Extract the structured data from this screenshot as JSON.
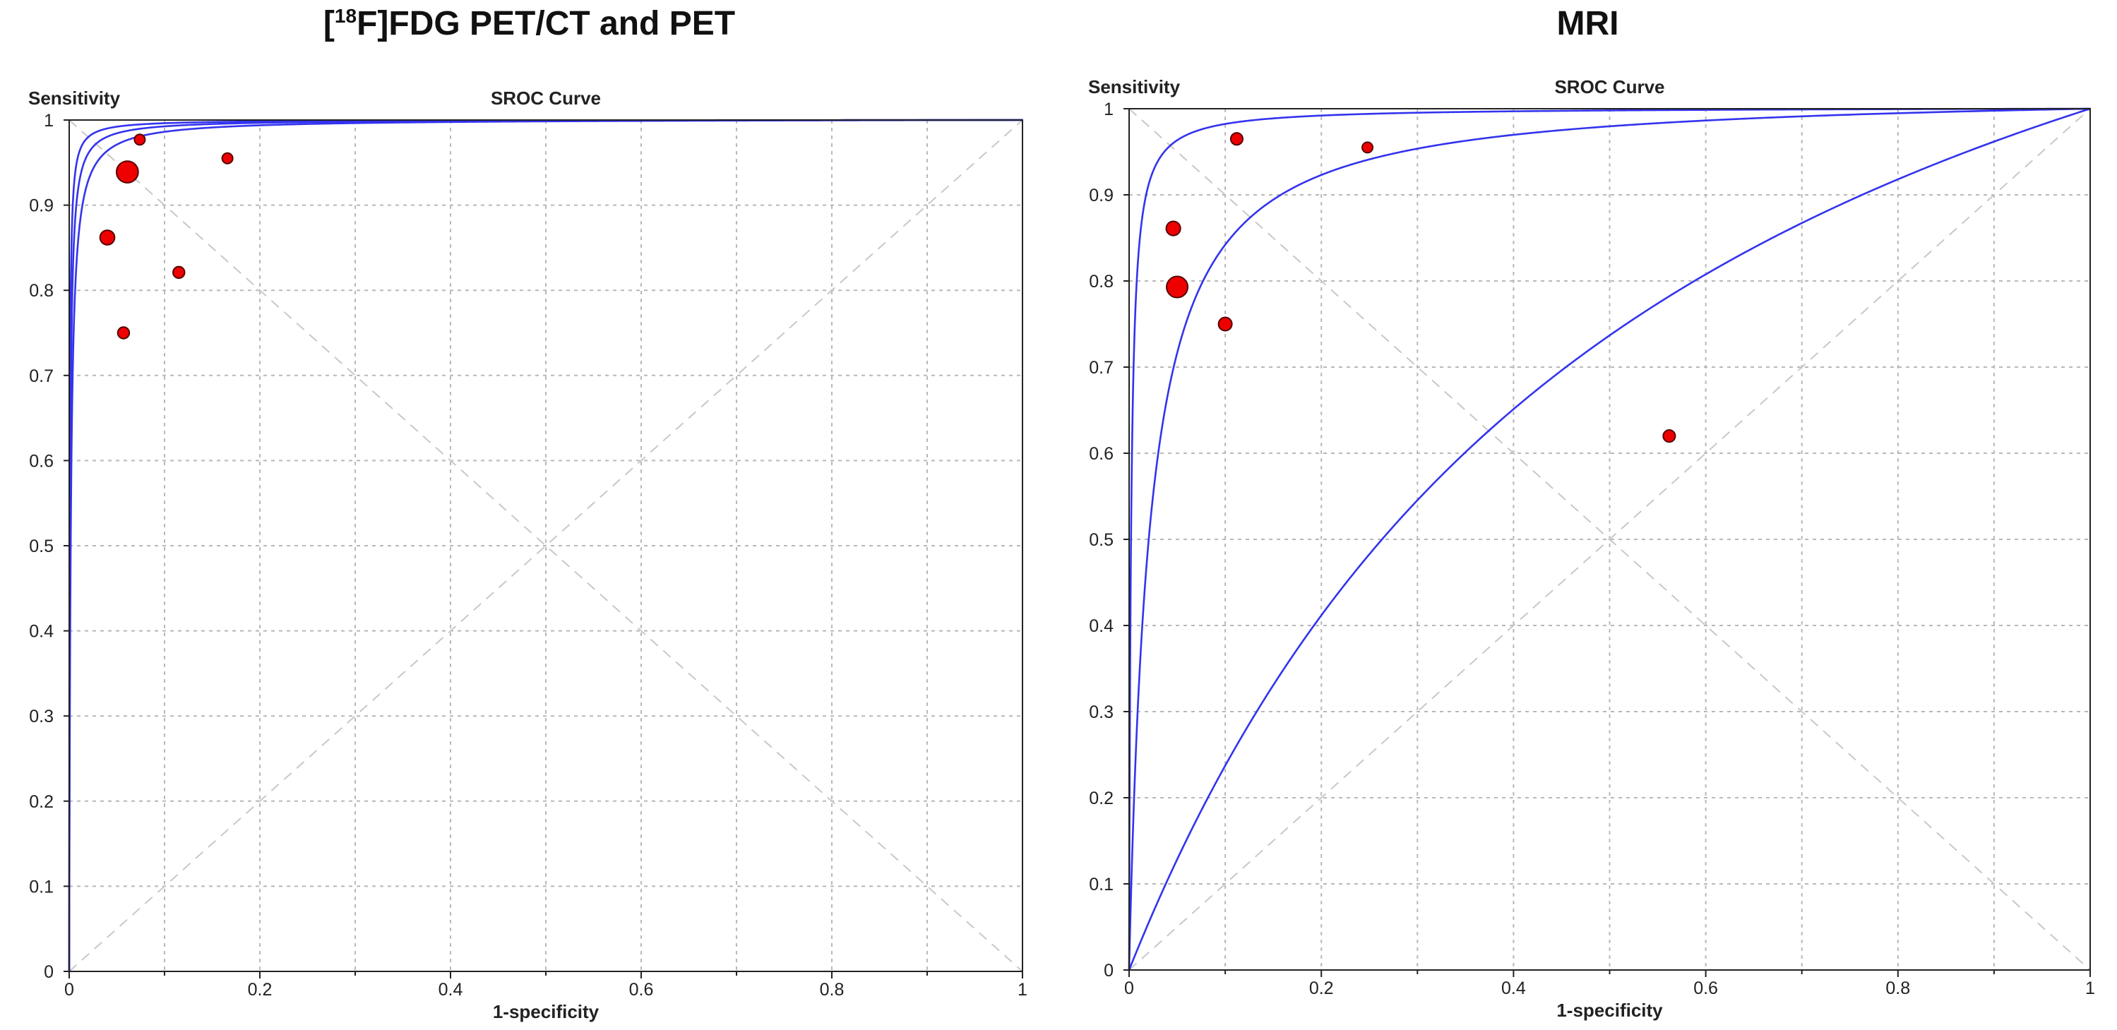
{
  "chart_data": [
    {
      "type": "scatter",
      "panel_title": {
        "prefix": "[",
        "sup": "18",
        "main": "F]FDG PET/CT and PET"
      },
      "title": "SROC Curve",
      "ylabel": "Sensitivity",
      "xlabel": "1-specificity",
      "xlim": [
        0,
        1
      ],
      "ylim": [
        0,
        1
      ],
      "xticks": [
        0,
        0.2,
        0.4,
        0.6,
        0.8,
        1
      ],
      "xtick_labels": [
        "0",
        "0.2",
        "0.4",
        "0.6",
        "0.8",
        "1"
      ],
      "yticks": [
        0,
        0.1,
        0.2,
        0.3,
        0.4,
        0.5,
        0.6,
        0.7,
        0.8,
        0.9,
        1
      ],
      "ytick_labels": [
        "0",
        "0.1",
        "0.2",
        "0.3",
        "0.4",
        "0.5",
        "0.6",
        "0.7",
        "0.8",
        "0.9",
        "1"
      ],
      "grid": true,
      "diagonals": true,
      "curves": [
        {
          "name": "SROC upper bound",
          "dor": 2400
        },
        {
          "name": "SROC curve",
          "dor": 1200
        },
        {
          "name": "SROC lower bound",
          "dor": 640
        }
      ],
      "points": [
        {
          "x": 0.061,
          "y": 0.939,
          "weight": 4.2
        },
        {
          "x": 0.074,
          "y": 0.977,
          "weight": 1.0
        },
        {
          "x": 0.166,
          "y": 0.955,
          "weight": 1.0
        },
        {
          "x": 0.04,
          "y": 0.862,
          "weight": 1.9
        },
        {
          "x": 0.115,
          "y": 0.821,
          "weight": 1.2
        },
        {
          "x": 0.057,
          "y": 0.75,
          "weight": 1.2
        }
      ]
    },
    {
      "type": "scatter",
      "panel_title": {
        "prefix": "",
        "sup": "",
        "main": "MRI"
      },
      "title": "SROC Curve",
      "ylabel": "Sensitivity",
      "xlabel": "1-specificity",
      "xlim": [
        0,
        1
      ],
      "ylim": [
        0,
        1
      ],
      "xticks": [
        0,
        0.2,
        0.4,
        0.6,
        0.8,
        1
      ],
      "xtick_labels": [
        "0",
        "0.2",
        "0.4",
        "0.6",
        "0.8",
        "1"
      ],
      "yticks": [
        0,
        0.1,
        0.2,
        0.3,
        0.4,
        0.5,
        0.6,
        0.7,
        0.8,
        0.9,
        1
      ],
      "ytick_labels": [
        "0",
        "0.1",
        "0.2",
        "0.3",
        "0.4",
        "0.5",
        "0.6",
        "0.7",
        "0.8",
        "0.9",
        "1"
      ],
      "grid": true,
      "diagonals": true,
      "curves": [
        {
          "name": "SROC upper bound",
          "dor": 500
        },
        {
          "name": "SROC curve",
          "dor": 48
        },
        {
          "name": "SROC lower bound",
          "dor": 2.8
        }
      ],
      "points": [
        {
          "x": 0.05,
          "y": 0.793,
          "weight": 4.0
        },
        {
          "x": 0.112,
          "y": 0.965,
          "weight": 1.3
        },
        {
          "x": 0.248,
          "y": 0.955,
          "weight": 1.0
        },
        {
          "x": 0.046,
          "y": 0.861,
          "weight": 1.8
        },
        {
          "x": 0.1,
          "y": 0.75,
          "weight": 1.6
        },
        {
          "x": 0.562,
          "y": 0.62,
          "weight": 1.3
        }
      ]
    }
  ]
}
